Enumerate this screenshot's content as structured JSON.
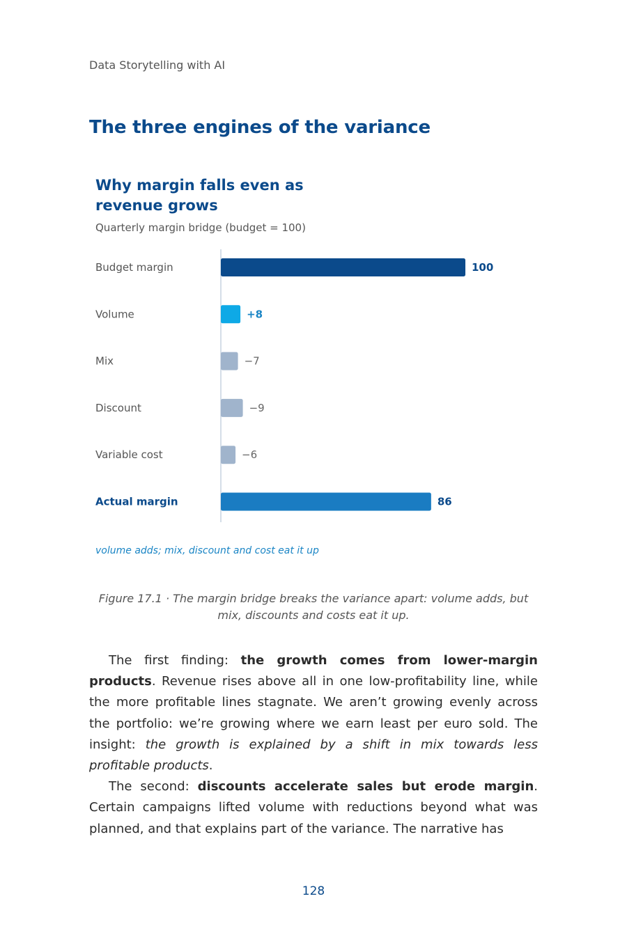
{
  "page": {
    "running_header": "Data Storytelling with AI",
    "section_title": "The three engines of the variance",
    "page_number": "128"
  },
  "figure": {
    "caption": "Figure 17.1 · The margin bridge breaks the variance apart: volume adds, but mix, discounts and costs eat it up.",
    "note": "volume adds; mix, discount and cost eat it up"
  },
  "chart_data": {
    "type": "bar",
    "orientation": "horizontal",
    "title": "Why margin falls even as revenue grows",
    "subtitle": "Quarterly margin bridge (budget = 100)",
    "categories": [
      "Budget margin",
      "Volume",
      "Mix",
      "Discount",
      "Variable cost",
      "Actual margin"
    ],
    "values": [
      100,
      8,
      -7,
      -9,
      -6,
      86
    ],
    "value_labels": [
      "100",
      "+8",
      "−7",
      "−9",
      "−6",
      "86"
    ],
    "kinds": [
      "total",
      "positive",
      "negative",
      "negative",
      "negative",
      "total"
    ],
    "xlim": [
      0,
      100
    ],
    "grid": false,
    "colors": {
      "total_budget": "#0b4a8b",
      "positive": "#0ea9e6",
      "negative": "#a0b4cc",
      "total_actual": "#1a7cc2",
      "axis": "#c7d3e0"
    }
  },
  "body": {
    "p1": {
      "t1": "The first finding: ",
      "b1": "the growth comes from lower-margin products",
      "t2": ". Revenue rises above all in one low-profitability line, while the more profitable lines stagnate. We aren’t growing evenly across the portfolio: we’re growing where we earn least per euro sold. The insight: ",
      "i1": "the growth is explained by a shift in mix towards less profitable products",
      "t3": "."
    },
    "p2": {
      "t1": "The second: ",
      "b1": "discounts accelerate sales but erode margin",
      "t2": ". Certain campaigns lifted volume with reductions beyond what was planned, and that explains part of the variance. The narrative has"
    }
  }
}
